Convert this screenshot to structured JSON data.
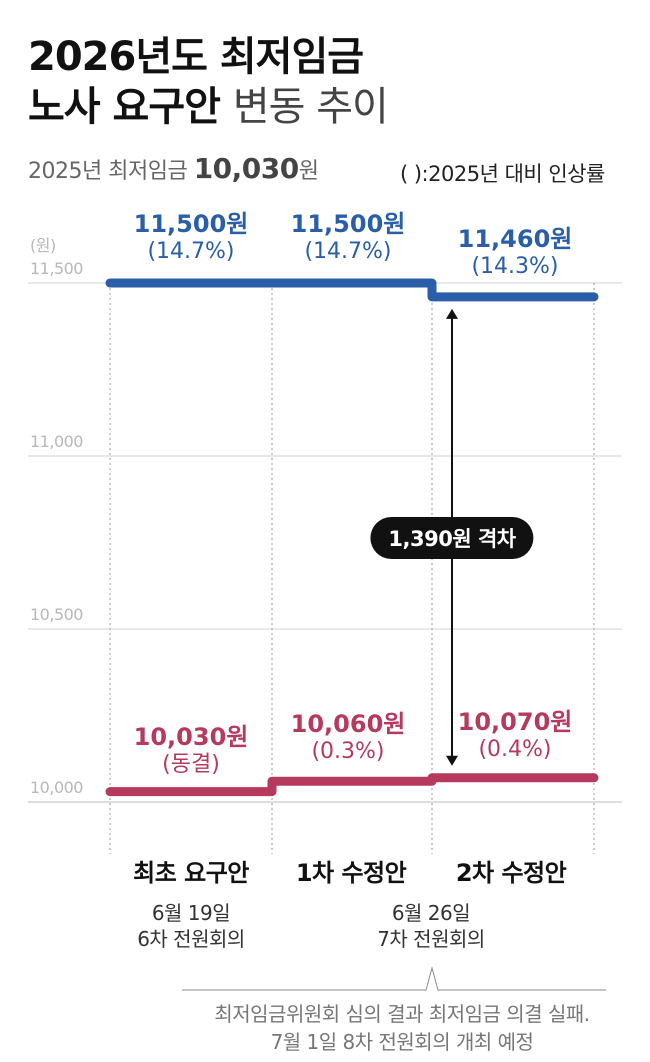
{
  "header": {
    "title_line1": "2026년도 최저임금",
    "title_line2_bold": "노사 요구안",
    "title_line2_light": "변동 추이",
    "base_prefix": "2025년 최저임금",
    "base_value": "10,030",
    "base_unit": "원",
    "note": "( ):2025년 대비 인상률"
  },
  "chart_data": {
    "type": "line",
    "title": "2026년도 최저임금 노사 요구안 변동 추이",
    "unit_label": "(원)",
    "ylim": [
      10000,
      11500
    ],
    "yticks": [
      10000,
      10500,
      11000,
      11500
    ],
    "ytick_labels": [
      "10,000",
      "10,500",
      "11,000",
      "11,500"
    ],
    "categories": [
      "최초 요구안",
      "1차 수정안",
      "2차 수정안"
    ],
    "series": [
      {
        "color": "#2a5ea8",
        "values": [
          11500,
          11500,
          11460
        ],
        "value_labels": [
          "11,500원",
          "11,500원",
          "11,460원"
        ],
        "rate_labels": [
          "(14.7%)",
          "(14.7%)",
          "(14.3%)"
        ]
      },
      {
        "color": "#b53a5d",
        "values": [
          10030,
          10060,
          10070
        ],
        "value_labels": [
          "10,030원",
          "10,060원",
          "10,070원"
        ],
        "rate_labels": [
          "(동결)",
          "(0.3%)",
          "(0.4%)"
        ]
      }
    ],
    "gap_label": "1,390원 격차"
  },
  "meetings": [
    {
      "line1": "6월 19일",
      "line2": "6차 전원회의"
    },
    {
      "line1": "6월 26일",
      "line2": "7차 전원회의"
    }
  ],
  "footnote": {
    "line1": "최저임금위원회 심의 결과 최저임금 의결 실패.",
    "line2": "7월 1일 8차 전원회의 개최 예정"
  }
}
